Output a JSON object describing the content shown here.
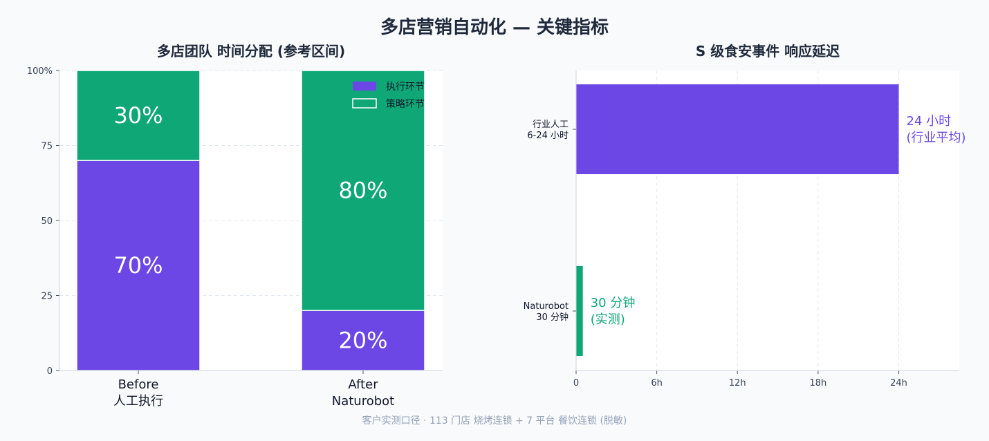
{
  "figure": {
    "title": "多店营销自动化 — 关键指标",
    "footnote": "客户实测口径 ·  113 门店 烧烤连锁 + 7 平台 餐饮连锁 (脱敏)"
  },
  "colors": {
    "purple": "#6c47e6",
    "green": "#0fa776",
    "axis": "#cbd5e1",
    "grid": "#e2e8f0"
  },
  "chart_data": [
    {
      "type": "bar",
      "stacked": true,
      "title": "多店团队 时间分配 (参考区间)",
      "categories": [
        [
          "Before",
          "人工执行"
        ],
        [
          "After",
          "Naturobot"
        ]
      ],
      "series": [
        {
          "name": "执行环节",
          "values": [
            70,
            20
          ],
          "labels": [
            "70%",
            "20%"
          ],
          "color": "#6c47e6"
        },
        {
          "name": "策略环节",
          "values": [
            30,
            80
          ],
          "labels": [
            "30%",
            "80%"
          ],
          "color": "#0fa776"
        }
      ],
      "ylim": [
        0,
        100
      ],
      "yticks": [
        0,
        25,
        50,
        75,
        100
      ],
      "ytick_labels": [
        "0",
        "25",
        "50",
        "75",
        "100%"
      ],
      "grid": true,
      "legend": "top-right"
    },
    {
      "type": "bar",
      "orientation": "horizontal",
      "title": "S 级食安事件 响应延迟",
      "categories": [
        [
          "行业人工",
          "6-24 小时"
        ],
        [
          "Naturobot",
          "30 分钟"
        ]
      ],
      "values": [
        24,
        0.5
      ],
      "colors": [
        "#6c47e6",
        "#0fa776"
      ],
      "annotations": [
        [
          "24 小时",
          "(行业平均)"
        ],
        [
          "30 分钟",
          "(实测)"
        ]
      ],
      "xlim": [
        0,
        28.5
      ],
      "xticks": [
        0,
        6,
        12,
        18,
        24
      ],
      "xtick_labels": [
        "0",
        "6h",
        "12h",
        "18h",
        "24h"
      ],
      "grid": true
    }
  ]
}
